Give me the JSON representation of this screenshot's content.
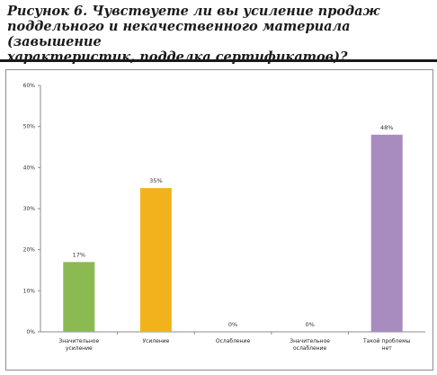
{
  "figure": {
    "caption": "Рисунок 6. Чувствуете ли вы усиление продаж\nподдельного и некачественного материала (завышение\nхарактеристик, подделка сертификатов)?"
  },
  "chart_data": {
    "type": "bar",
    "categories": [
      [
        "Значительное",
        "усиление"
      ],
      [
        "Усиление"
      ],
      [
        "Ослабление"
      ],
      [
        "Значительное",
        "ослабление"
      ],
      [
        "Такой проблемы",
        "нет"
      ]
    ],
    "values": [
      17,
      35,
      0,
      0,
      48
    ],
    "data_labels": [
      "17%",
      "35%",
      "0%",
      "0%",
      "48%"
    ],
    "bar_colors": [
      "#8cba52",
      "#f2b21b",
      "#4f81bd",
      "#c0504d",
      "#a88bbf"
    ],
    "ylim": [
      0,
      60
    ],
    "yticks": [
      0,
      10,
      20,
      30,
      40,
      50,
      60
    ],
    "ytick_labels": [
      "0%",
      "10%",
      "20%",
      "30%",
      "40%",
      "50%",
      "60%"
    ],
    "grid": false,
    "legend": "none"
  }
}
